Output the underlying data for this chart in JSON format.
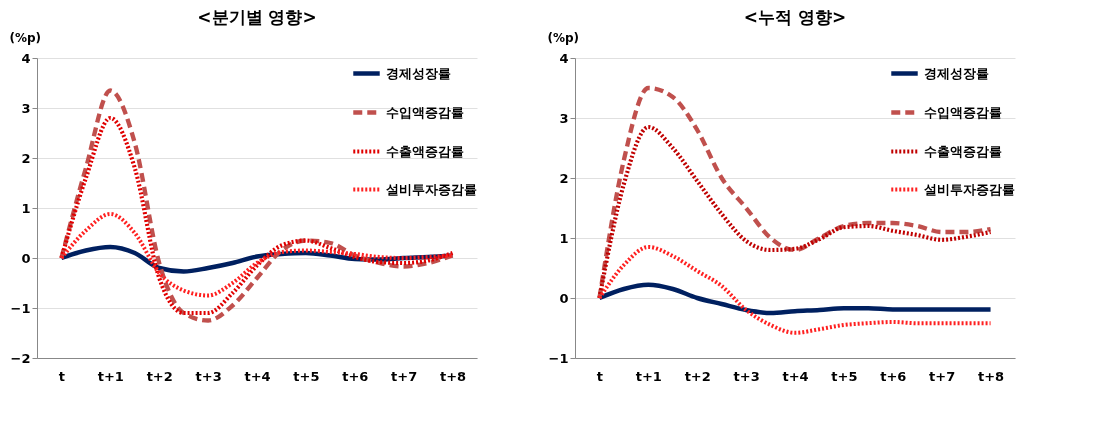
{
  "chart_data": [
    {
      "type": "line",
      "title": "<분기별 영향>",
      "ylabel": "(%p)",
      "categories": [
        "t",
        null,
        "t+1",
        null,
        "t+2",
        null,
        "t+3",
        null,
        "t+4",
        null,
        "t+5",
        null,
        "t+6",
        null,
        "t+7",
        null,
        "t+8"
      ],
      "ylim": [
        -2,
        4
      ],
      "yticks": [
        -2,
        -1,
        0,
        1,
        2,
        3,
        4
      ],
      "grid": "y",
      "legend": "top right",
      "series": [
        {
          "name": "경제성장률",
          "color": "#002060",
          "line_style": "solid",
          "values": [
            0,
            0.15,
            0.22,
            0.1,
            -0.2,
            -0.27,
            -0.2,
            -0.1,
            0.03,
            0.08,
            0.1,
            0.05,
            -0.02,
            -0.03,
            0,
            0.02,
            0.05
          ]
        },
        {
          "name": "수입액증감률",
          "color": "#c0504d",
          "line_style": "dashed",
          "values": [
            0,
            1.8,
            3.35,
            2.3,
            -0.1,
            -1.1,
            -1.25,
            -0.95,
            -0.4,
            0.15,
            0.35,
            0.3,
            0.05,
            -0.1,
            -0.17,
            -0.1,
            0.05
          ]
        },
        {
          "name": "수출액증감률",
          "color": "#e00000",
          "line_style": "dotted",
          "values": [
            0,
            1.6,
            2.8,
            1.8,
            -0.4,
            -1.1,
            -1.1,
            -0.7,
            -0.15,
            0.25,
            0.35,
            0.2,
            0.02,
            -0.08,
            -0.1,
            -0.05,
            0.1
          ]
        },
        {
          "name": "설비투자증감률",
          "color": "#ff2020",
          "line_style": "dotted",
          "values": [
            0,
            0.55,
            0.88,
            0.5,
            -0.3,
            -0.65,
            -0.75,
            -0.5,
            -0.1,
            0.12,
            0.15,
            0.12,
            0.08,
            0.02,
            0,
            0.02,
            0.05
          ]
        }
      ]
    },
    {
      "type": "line",
      "title": "<누적 영향>",
      "ylabel": "(%p)",
      "categories": [
        "t",
        null,
        "t+1",
        null,
        "t+2",
        null,
        "t+3",
        null,
        "t+4",
        null,
        "t+5",
        null,
        "t+6",
        null,
        "t+7",
        null,
        "t+8"
      ],
      "ylim": [
        -1,
        4
      ],
      "yticks": [
        -1,
        0,
        1,
        2,
        3,
        4
      ],
      "grid": "y",
      "legend": "top right",
      "series": [
        {
          "name": "경제성장률",
          "color": "#002060",
          "line_style": "solid",
          "values": [
            0,
            0.15,
            0.22,
            0.15,
            0,
            -0.1,
            -0.2,
            -0.25,
            -0.22,
            -0.2,
            -0.17,
            -0.17,
            -0.19,
            -0.19,
            -0.19,
            -0.19,
            -0.19
          ]
        },
        {
          "name": "수입액증감률",
          "color": "#c0504d",
          "line_style": "dashed",
          "values": [
            0,
            2.3,
            3.5,
            3.35,
            2.8,
            2.0,
            1.5,
            1.0,
            0.8,
            1.0,
            1.2,
            1.25,
            1.25,
            1.2,
            1.1,
            1.1,
            1.15
          ]
        },
        {
          "name": "수출액증감률",
          "color": "#c00000",
          "line_style": "dotted",
          "values": [
            0,
            1.9,
            2.85,
            2.5,
            1.95,
            1.4,
            0.95,
            0.8,
            0.82,
            0.98,
            1.18,
            1.2,
            1.12,
            1.05,
            0.97,
            1.02,
            1.1
          ]
        },
        {
          "name": "설비투자증감률",
          "color": "#ff2020",
          "line_style": "dotted",
          "values": [
            0,
            0.55,
            0.85,
            0.7,
            0.45,
            0.2,
            -0.2,
            -0.45,
            -0.58,
            -0.52,
            -0.45,
            -0.42,
            -0.4,
            -0.42,
            -0.42,
            -0.42,
            -0.42
          ]
        }
      ]
    }
  ]
}
